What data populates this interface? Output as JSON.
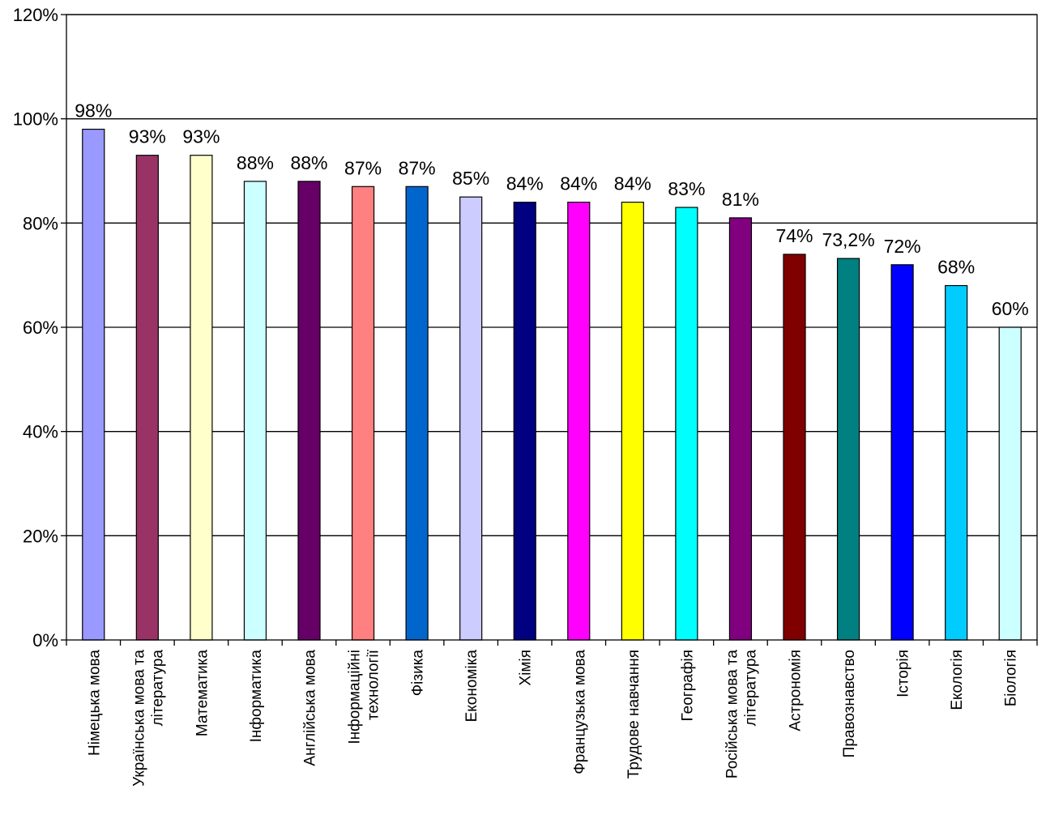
{
  "chart_data": {
    "type": "bar",
    "categories": [
      [
        "Німецька мова"
      ],
      [
        "Українська мова та",
        "література"
      ],
      [
        "Математика"
      ],
      [
        "Інформатика"
      ],
      [
        "Англійська мова"
      ],
      [
        "Інформаційні",
        "технології"
      ],
      [
        "Фізика"
      ],
      [
        "Економіка"
      ],
      [
        "Хімія"
      ],
      [
        "Французька мова"
      ],
      [
        "Трудове навчання"
      ],
      [
        "Географія"
      ],
      [
        "Російська мова та",
        "література"
      ],
      [
        "Астрономія"
      ],
      [
        "Правознавство"
      ],
      [
        "Історія"
      ],
      [
        "Екологія"
      ],
      [
        "Біологія"
      ]
    ],
    "values": [
      98,
      93,
      93,
      88,
      88,
      87,
      87,
      85,
      84,
      84,
      84,
      83,
      81,
      74,
      73.2,
      72,
      68,
      60
    ],
    "data_labels": [
      "98%",
      "93%",
      "93%",
      "88%",
      "88%",
      "87%",
      "87%",
      "85%",
      "84%",
      "84%",
      "84%",
      "83%",
      "81%",
      "74%",
      "73,2%",
      "72%",
      "68%",
      "60%"
    ],
    "colors": [
      "#9999FF",
      "#993366",
      "#FFFFCC",
      "#CCFFFF",
      "#660066",
      "#FF8080",
      "#0066CC",
      "#CCCCFF",
      "#000080",
      "#FF00FF",
      "#FFFF00",
      "#00FFFF",
      "#800080",
      "#800000",
      "#008080",
      "#0000FF",
      "#00CCFF",
      "#CCFFFF"
    ],
    "yticks": [
      "0%",
      "20%",
      "40%",
      "60%",
      "80%",
      "100%",
      "120%"
    ],
    "ylim": [
      0,
      120
    ],
    "grid": true,
    "title": "",
    "xlabel": "",
    "ylabel": ""
  }
}
